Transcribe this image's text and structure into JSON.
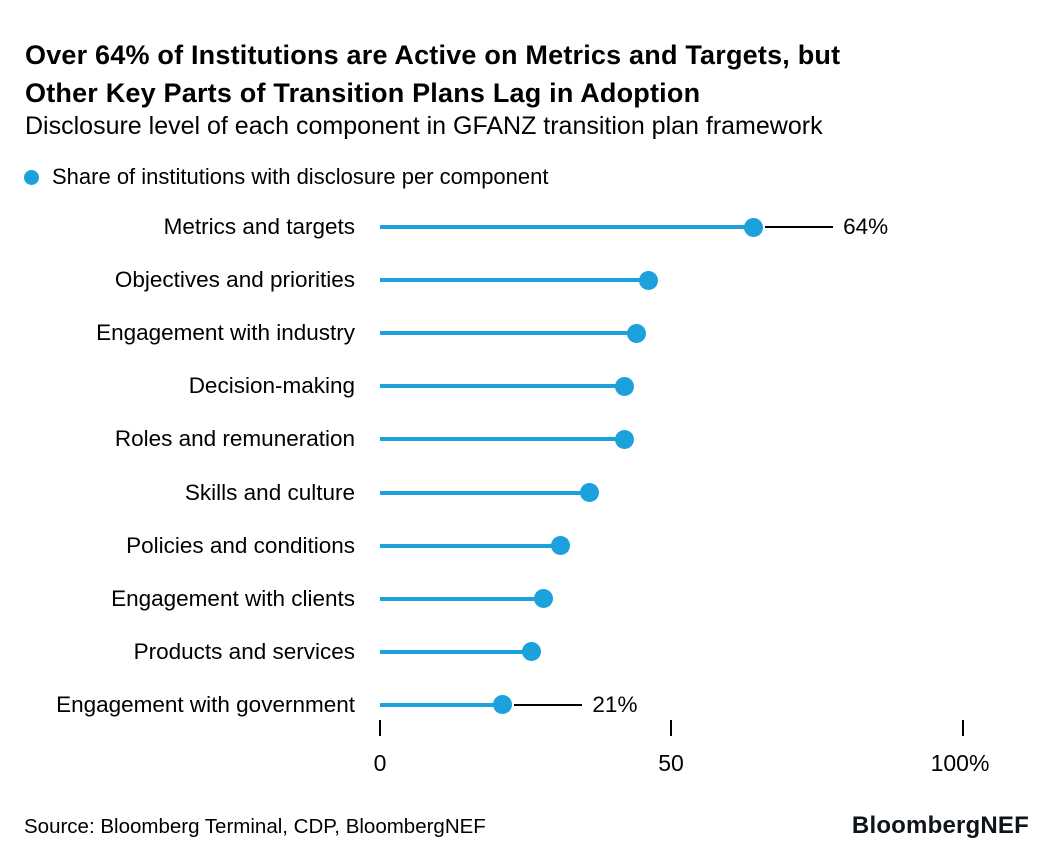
{
  "accent_color": "#1CA1DC",
  "text_color": "#000000",
  "background_color": "#FFFFFF",
  "header": {
    "title_line1": "Over 64% of Institutions are Active on Metrics and Targets, but",
    "title_line2": "Other Key Parts of Transition Plans Lag in Adoption",
    "subtitle": "Disclosure level of each component in GFANZ transition plan framework"
  },
  "legend": {
    "marker_icon": "dot-icon",
    "marker_color": "#1CA1DC",
    "label": "Share of institutions with disclosure per component"
  },
  "chart_data": {
    "type": "bar",
    "subtype": "lollipop",
    "orientation": "horizontal",
    "title": "Over 64% of Institutions are Active on Metrics and Targets, but Other Key Parts of Transition Plans Lag in Adoption",
    "subtitle": "Disclosure level of each component in GFANZ transition plan framework",
    "legend_label": "Share of institutions with disclosure per component",
    "legend_position": "top-left",
    "categories": [
      "Metrics and targets",
      "Objectives and priorities",
      "Engagement with industry",
      "Decision-making",
      "Roles and remuneration",
      "Skills and culture",
      "Policies and conditions",
      "Engagement with clients",
      "Products and services",
      "Engagement with government"
    ],
    "values": [
      64,
      46,
      44,
      42,
      42,
      36,
      31,
      28,
      26,
      21
    ],
    "unit": "%",
    "annotations": [
      {
        "index": 0,
        "label": "64%"
      },
      {
        "index": 9,
        "label": "21%"
      }
    ],
    "xlim": [
      0,
      100
    ],
    "xticks": [
      0,
      50,
      100
    ],
    "xtick_labels": [
      "0",
      "50",
      "100%"
    ],
    "series_color": "#1CA1DC",
    "grid": false
  },
  "footer": {
    "source": "Source: Bloomberg Terminal, CDP, BloombergNEF",
    "logo": "BloombergNEF"
  }
}
